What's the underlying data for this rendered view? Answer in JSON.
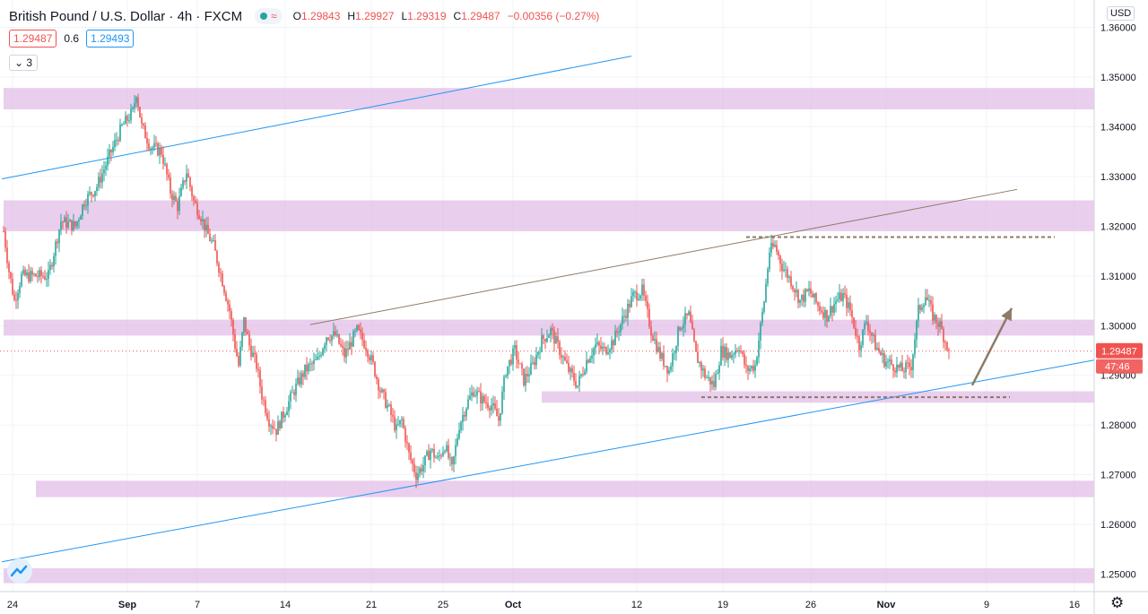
{
  "header": {
    "symbol_title": "British Pound / U.S. Dollar · 4h · FXCM",
    "status_icon": "connection-dot-icon",
    "status_color": "#26a69a",
    "wave_icon": "≈",
    "ohlc": {
      "o_label": "O",
      "o": "1.29843",
      "h_label": "H",
      "h": "1.29927",
      "l_label": "L",
      "l": "1.29319",
      "c_label": "C",
      "c": "1.29487",
      "change": "−0.00356 (−0.27%)"
    },
    "bid": "1.29487",
    "spread": "0.6",
    "ask": "1.29493",
    "indicator_toggle": "3"
  },
  "currency_button": "USD",
  "settings_icon": "gear-icon",
  "logo_icon": "tradingview-logo-icon",
  "colors": {
    "up": "#26a69a",
    "down": "#ef5350",
    "zone": "#e1bee7",
    "channel": "#2196f3",
    "trendline": "#8d7b67",
    "price_label": "#ef5350"
  },
  "chart_data": {
    "type": "candlestick",
    "symbol": "British Pound / U.S. Dollar",
    "timeframe": "4h",
    "exchange": "FXCM",
    "ylim": [
      1.2465,
      1.3655
    ],
    "y_ticks": [
      "1.36000",
      "1.35000",
      "1.34000",
      "1.33000",
      "1.32000",
      "1.31000",
      "1.30000",
      "1.29000",
      "1.28000",
      "1.27000",
      "1.26000",
      "1.25000"
    ],
    "x_ticks": [
      "24",
      "Sep",
      "7",
      "14",
      "21",
      "25",
      "Oct",
      "12",
      "19",
      "26",
      "Nov",
      "9",
      "16"
    ],
    "last_price": "1.29487",
    "last_price_value": 1.29487,
    "countdown": "47:46",
    "anchor_points": [
      [
        0,
        1.319
      ],
      [
        3,
        1.311
      ],
      [
        6,
        1.305
      ],
      [
        10,
        1.31
      ],
      [
        18,
        1.31
      ],
      [
        25,
        1.31
      ],
      [
        32,
        1.321
      ],
      [
        40,
        1.32
      ],
      [
        45,
        1.325
      ],
      [
        52,
        1.328
      ],
      [
        60,
        1.335
      ],
      [
        66,
        1.34
      ],
      [
        72,
        1.343
      ],
      [
        74,
        1.347
      ],
      [
        77,
        1.34
      ],
      [
        82,
        1.336
      ],
      [
        88,
        1.335
      ],
      [
        93,
        1.327
      ],
      [
        97,
        1.324
      ],
      [
        102,
        1.331
      ],
      [
        106,
        1.325
      ],
      [
        110,
        1.322
      ],
      [
        113,
        1.319
      ],
      [
        117,
        1.316
      ],
      [
        122,
        1.309
      ],
      [
        126,
        1.303
      ],
      [
        129,
        1.296
      ],
      [
        131,
        1.292
      ],
      [
        134,
        1.301
      ],
      [
        137,
        1.296
      ],
      [
        141,
        1.292
      ],
      [
        144,
        1.286
      ],
      [
        148,
        1.281
      ],
      [
        152,
        1.279
      ],
      [
        157,
        1.283
      ],
      [
        162,
        1.287
      ],
      [
        168,
        1.291
      ],
      [
        175,
        1.293
      ],
      [
        180,
        1.298
      ],
      [
        185,
        1.298
      ],
      [
        190,
        1.294
      ],
      [
        197,
        1.299
      ],
      [
        202,
        1.296
      ],
      [
        206,
        1.292
      ],
      [
        210,
        1.287
      ],
      [
        215,
        1.283
      ],
      [
        219,
        1.279
      ],
      [
        222,
        1.281
      ],
      [
        226,
        1.274
      ],
      [
        230,
        1.27
      ],
      [
        234,
        1.272
      ],
      [
        238,
        1.275
      ],
      [
        242,
        1.273
      ],
      [
        246,
        1.276
      ],
      [
        250,
        1.271
      ],
      [
        254,
        1.28
      ],
      [
        258,
        1.284
      ],
      [
        262,
        1.287
      ],
      [
        267,
        1.285
      ],
      [
        272,
        1.284
      ],
      [
        276,
        1.281
      ],
      [
        280,
        1.291
      ],
      [
        285,
        1.295
      ],
      [
        290,
        1.289
      ],
      [
        295,
        1.292
      ],
      [
        300,
        1.297
      ],
      [
        305,
        1.299
      ],
      [
        310,
        1.295
      ],
      [
        315,
        1.291
      ],
      [
        320,
        1.288
      ],
      [
        325,
        1.293
      ],
      [
        330,
        1.296
      ],
      [
        335,
        1.295
      ],
      [
        340,
        1.297
      ],
      [
        346,
        1.302
      ],
      [
        351,
        1.306
      ],
      [
        356,
        1.307
      ],
      [
        361,
        1.299
      ],
      [
        366,
        1.294
      ],
      [
        371,
        1.291
      ],
      [
        377,
        1.3
      ],
      [
        382,
        1.302
      ],
      [
        386,
        1.294
      ],
      [
        391,
        1.29
      ],
      [
        396,
        1.288
      ],
      [
        400,
        1.295
      ],
      [
        405,
        1.294
      ],
      [
        410,
        1.296
      ],
      [
        414,
        1.291
      ],
      [
        419,
        1.292
      ],
      [
        424,
        1.305
      ],
      [
        427,
        1.315
      ],
      [
        430,
        1.316
      ],
      [
        434,
        1.312
      ],
      [
        439,
        1.309
      ],
      [
        444,
        1.305
      ],
      [
        449,
        1.307
      ],
      [
        454,
        1.304
      ],
      [
        459,
        1.302
      ],
      [
        464,
        1.305
      ],
      [
        468,
        1.306
      ],
      [
        472,
        1.303
      ],
      [
        477,
        1.296
      ],
      [
        481,
        1.301
      ],
      [
        486,
        1.296
      ],
      [
        491,
        1.293
      ],
      [
        496,
        1.292
      ],
      [
        501,
        1.291
      ],
      [
        506,
        1.292
      ],
      [
        510,
        1.303
      ],
      [
        514,
        1.306
      ],
      [
        518,
        1.302
      ],
      [
        522,
        1.3
      ],
      [
        525,
        1.297
      ],
      [
        527,
        1.295
      ]
    ],
    "zones": [
      {
        "y_top": 1.3478,
        "y_bottom": 1.3435,
        "x_start": 0
      },
      {
        "y_top": 1.3252,
        "y_bottom": 1.319,
        "x_start": 0
      },
      {
        "y_top": 1.3012,
        "y_bottom": 1.298,
        "x_start": 0
      },
      {
        "y_top": 1.2868,
        "y_bottom": 1.2845,
        "x_start": 300
      },
      {
        "y_top": 1.2688,
        "y_bottom": 1.2655,
        "x_start": 18
      },
      {
        "y_top": 1.2512,
        "y_bottom": 1.2482,
        "x_start": 0
      }
    ],
    "lines": [
      {
        "kind": "channel-top",
        "p1": [
          -1,
          1.3295
        ],
        "p2": [
          350,
          1.3542
        ]
      },
      {
        "kind": "channel-bottom",
        "p1": [
          -1,
          1.2525
        ],
        "p2": [
          610,
          1.2932
        ]
      },
      {
        "kind": "trendline",
        "p1": [
          171,
          1.3002
        ],
        "p2": [
          565,
          1.3274
        ]
      },
      {
        "kind": "dashed-resistance",
        "p1": [
          414,
          1.3178
        ],
        "p2": [
          586,
          1.3178
        ]
      },
      {
        "kind": "dashed-support",
        "p1": [
          389,
          1.2856
        ],
        "p2": [
          561,
          1.2856
        ]
      }
    ],
    "arrow": {
      "from": [
        540,
        1.288
      ],
      "to": [
        562,
        1.3035
      ]
    }
  }
}
